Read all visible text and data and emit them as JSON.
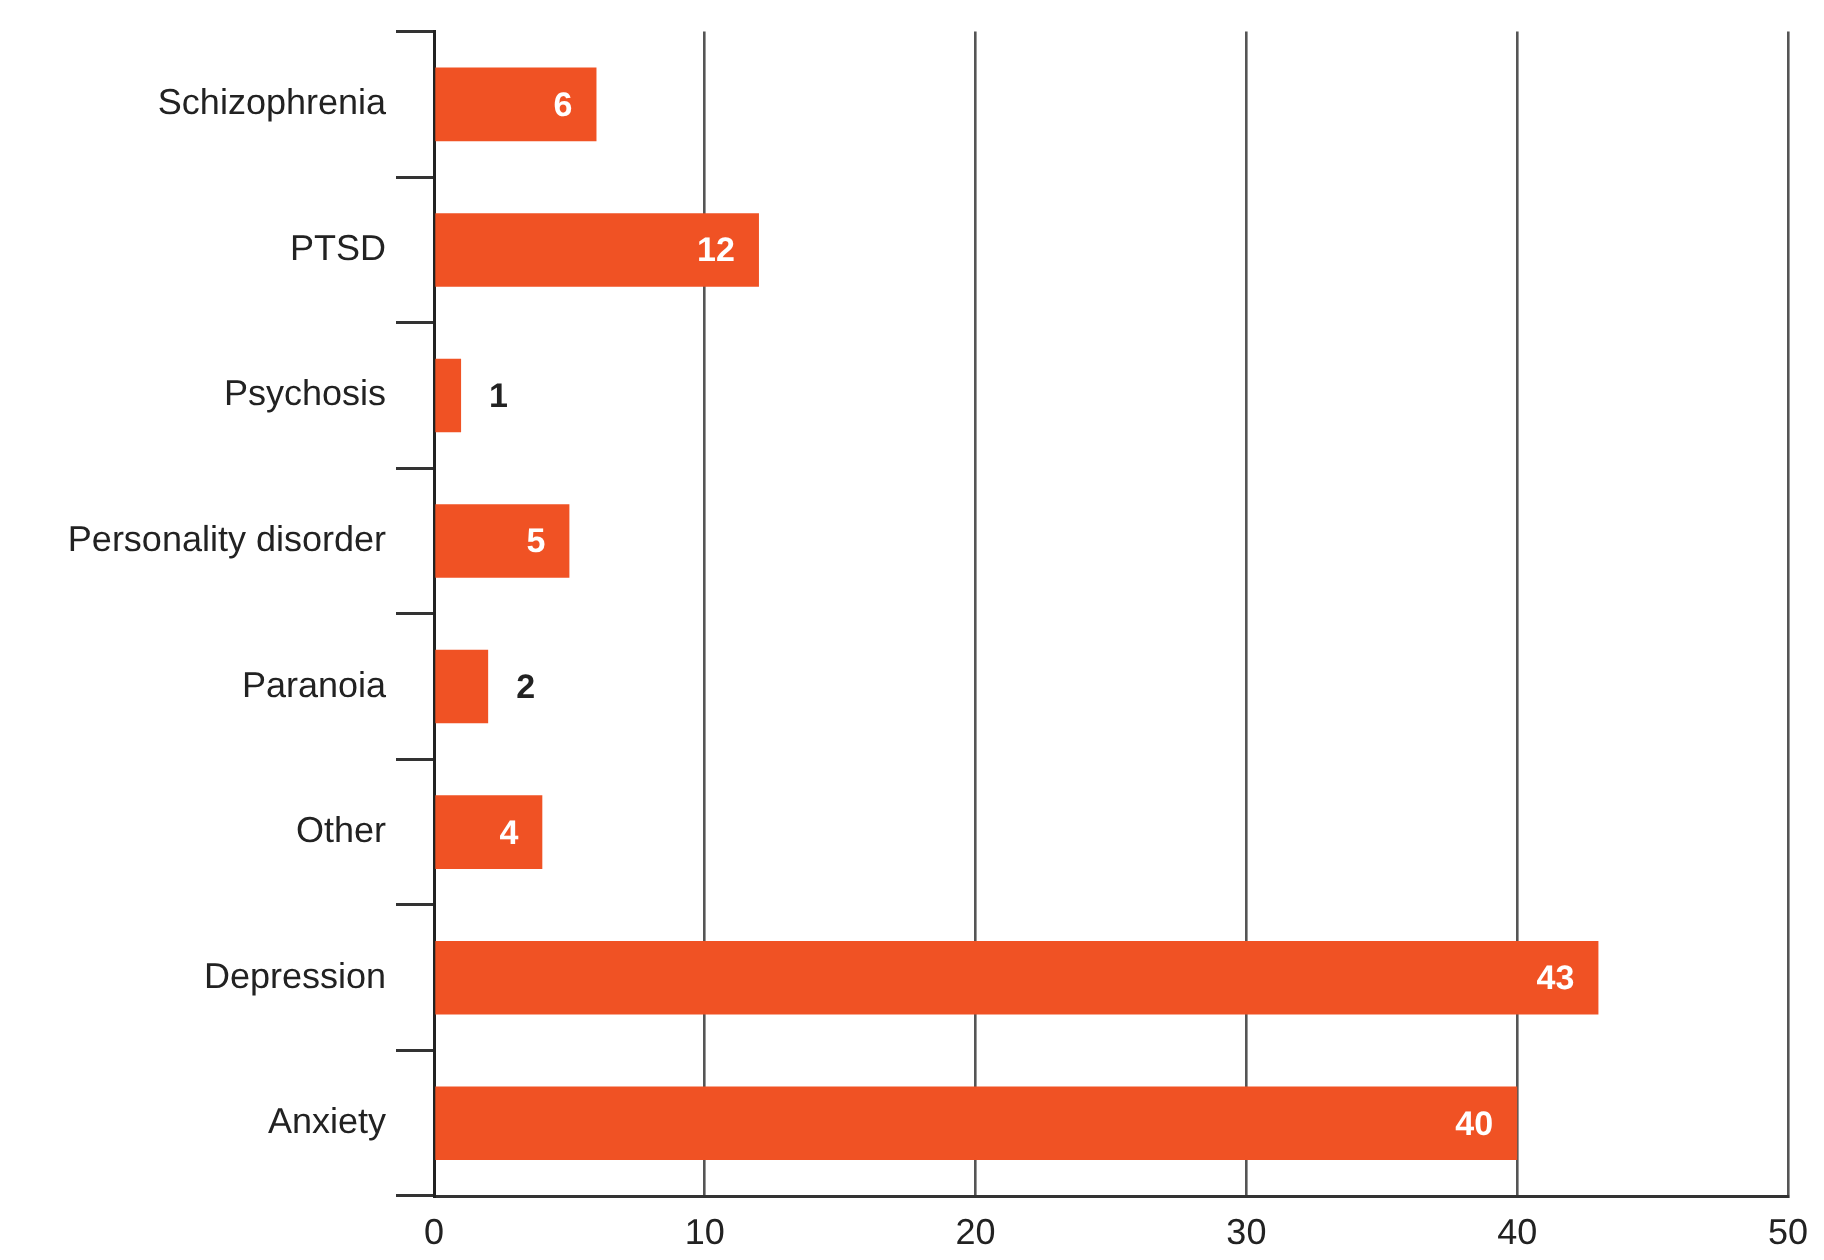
{
  "chart_data": {
    "type": "bar",
    "orientation": "horizontal",
    "categories": [
      "Schizophrenia",
      "PTSD",
      "Psychosis",
      "Personality disorder",
      "Paranoia",
      "Other",
      "Depression",
      "Anxiety"
    ],
    "values": [
      6,
      12,
      1,
      5,
      2,
      4,
      43,
      40
    ],
    "color": "#f05224",
    "xlim": [
      0,
      50
    ],
    "xticks": [
      0,
      10,
      20,
      30,
      40,
      50
    ],
    "grid": "x",
    "data_labels": true
  }
}
